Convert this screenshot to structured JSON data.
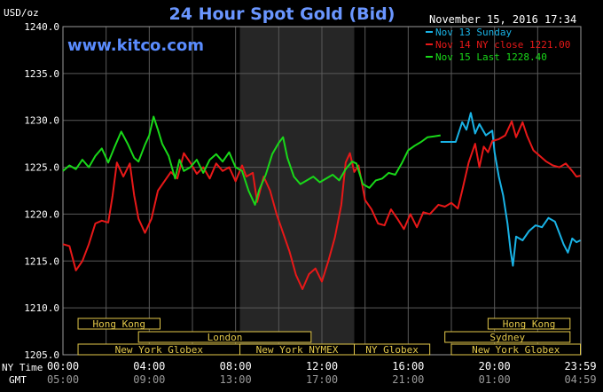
{
  "chart_data": {
    "type": "line",
    "title": "24 Hour Spot Gold (Bid)",
    "site": "www.kitco.com",
    "timestamp": "November 15, 2016 17:34",
    "y_unit_label": "USD/oz",
    "ylim": [
      1205,
      1240
    ],
    "y_ticks": [
      1205,
      1210,
      1215,
      1220,
      1225,
      1230,
      1235,
      1240
    ],
    "y_tick_labels": [
      "1205.0",
      "1210.0",
      "1215.0",
      "1220.0",
      "1225.0",
      "1230.0",
      "1235.0",
      "1240.0"
    ],
    "x_row_labels": {
      "ny": "NY Time",
      "gmt": "GMT"
    },
    "x_ticks_ny": [
      "00:00",
      "04:00",
      "08:00",
      "12:00",
      "16:00",
      "20:00",
      "23:59"
    ],
    "x_ticks_gmt": [
      "05:00",
      "09:00",
      "13:00",
      "17:00",
      "21:00",
      "01:00",
      "04:59"
    ],
    "x_tick_hours": [
      0,
      4,
      8,
      12,
      16,
      20,
      23.98
    ],
    "xlim": [
      0,
      24
    ],
    "shaded_hours": [
      8.2,
      13.5
    ],
    "grid": true,
    "legend": [
      {
        "label": "Nov 13 Sunday",
        "color": "#19b3e6"
      },
      {
        "label": "Nov 14 NY close 1221.00",
        "color": "#e81818"
      },
      {
        "label": "Nov 15 Last 1228.40",
        "color": "#19d819"
      }
    ],
    "sessions": [
      {
        "label": "Hong Kong",
        "start": 0.7,
        "end": 4.5,
        "row": 0
      },
      {
        "label": "London",
        "start": 3.5,
        "end": 11.5,
        "row": 1
      },
      {
        "label": "New York Globex",
        "start": 0.7,
        "end": 8.2,
        "row": 2
      },
      {
        "label": "New York NYMEX",
        "start": 8.2,
        "end": 13.5,
        "row": 2
      },
      {
        "label": "NY Globex",
        "start": 13.5,
        "end": 17.0,
        "row": 2
      },
      {
        "label": "Hong Kong",
        "start": 19.7,
        "end": 23.5,
        "row": 0
      },
      {
        "label": "Sydney",
        "start": 17.7,
        "end": 23.5,
        "row": 1
      },
      {
        "label": "New York Globex",
        "start": 18.0,
        "end": 23.98,
        "row": 2
      }
    ],
    "series": [
      {
        "name": "Nov 13 Sunday",
        "color": "#19b3e6",
        "points": [
          [
            17.5,
            1227.7
          ],
          [
            18.2,
            1227.7
          ],
          [
            18.5,
            1229.8
          ],
          [
            18.7,
            1229.0
          ],
          [
            18.9,
            1230.8
          ],
          [
            19.1,
            1228.6
          ],
          [
            19.3,
            1229.6
          ],
          [
            19.6,
            1228.4
          ],
          [
            19.9,
            1228.9
          ],
          [
            20.0,
            1226.6
          ],
          [
            20.2,
            1224.0
          ],
          [
            20.4,
            1222.0
          ],
          [
            20.6,
            1219.0
          ],
          [
            20.75,
            1216.0
          ],
          [
            20.85,
            1214.5
          ],
          [
            21.0,
            1217.6
          ],
          [
            21.3,
            1217.2
          ],
          [
            21.6,
            1218.2
          ],
          [
            21.9,
            1218.8
          ],
          [
            22.2,
            1218.6
          ],
          [
            22.5,
            1219.6
          ],
          [
            22.8,
            1219.2
          ],
          [
            23.0,
            1218.0
          ],
          [
            23.2,
            1216.8
          ],
          [
            23.4,
            1215.9
          ],
          [
            23.6,
            1217.4
          ],
          [
            23.8,
            1217.0
          ],
          [
            23.98,
            1217.2
          ]
        ]
      },
      {
        "name": "Nov 14 NY close 1221.00",
        "color": "#e81818",
        "points": [
          [
            0,
            1216.8
          ],
          [
            0.3,
            1216.6
          ],
          [
            0.6,
            1214.0
          ],
          [
            0.9,
            1215.0
          ],
          [
            1.2,
            1216.8
          ],
          [
            1.5,
            1219.0
          ],
          [
            1.8,
            1219.3
          ],
          [
            2.1,
            1219.1
          ],
          [
            2.3,
            1222.0
          ],
          [
            2.5,
            1225.5
          ],
          [
            2.8,
            1224.0
          ],
          [
            3.1,
            1225.4
          ],
          [
            3.3,
            1222.0
          ],
          [
            3.5,
            1219.5
          ],
          [
            3.8,
            1218.0
          ],
          [
            4.1,
            1219.5
          ],
          [
            4.4,
            1222.5
          ],
          [
            4.7,
            1223.5
          ],
          [
            5.0,
            1224.5
          ],
          [
            5.3,
            1223.8
          ],
          [
            5.6,
            1226.5
          ],
          [
            5.9,
            1225.5
          ],
          [
            6.2,
            1224.3
          ],
          [
            6.5,
            1225.0
          ],
          [
            6.8,
            1223.8
          ],
          [
            7.1,
            1225.4
          ],
          [
            7.4,
            1224.6
          ],
          [
            7.7,
            1225.0
          ],
          [
            8.0,
            1223.5
          ],
          [
            8.3,
            1225.2
          ],
          [
            8.5,
            1224.0
          ],
          [
            8.8,
            1224.4
          ],
          [
            9.0,
            1221.3
          ],
          [
            9.3,
            1224.0
          ],
          [
            9.6,
            1222.5
          ],
          [
            9.9,
            1220.0
          ],
          [
            10.2,
            1218.0
          ],
          [
            10.5,
            1216.0
          ],
          [
            10.8,
            1213.5
          ],
          [
            11.1,
            1212.0
          ],
          [
            11.4,
            1213.6
          ],
          [
            11.7,
            1214.2
          ],
          [
            12.0,
            1212.8
          ],
          [
            12.3,
            1215.0
          ],
          [
            12.6,
            1217.5
          ],
          [
            12.9,
            1221.0
          ],
          [
            13.1,
            1225.5
          ],
          [
            13.3,
            1226.5
          ],
          [
            13.5,
            1224.5
          ],
          [
            13.7,
            1225.2
          ],
          [
            14.0,
            1221.5
          ],
          [
            14.3,
            1220.5
          ],
          [
            14.6,
            1219.0
          ],
          [
            14.9,
            1218.8
          ],
          [
            15.2,
            1220.5
          ],
          [
            15.5,
            1219.5
          ],
          [
            15.8,
            1218.4
          ],
          [
            16.1,
            1220.0
          ],
          [
            16.4,
            1218.6
          ],
          [
            16.7,
            1220.2
          ],
          [
            17.0,
            1220.0
          ],
          [
            17.4,
            1221.0
          ],
          [
            17.7,
            1220.8
          ],
          [
            18.0,
            1221.2
          ],
          [
            18.3,
            1220.6
          ],
          [
            18.5,
            1222.5
          ],
          [
            18.8,
            1225.5
          ],
          [
            19.1,
            1227.5
          ],
          [
            19.3,
            1225.0
          ],
          [
            19.5,
            1227.2
          ],
          [
            19.7,
            1226.6
          ],
          [
            19.9,
            1227.8
          ],
          [
            20.2,
            1228.0
          ],
          [
            20.5,
            1228.4
          ],
          [
            20.8,
            1229.9
          ],
          [
            21.0,
            1228.2
          ],
          [
            21.3,
            1229.8
          ],
          [
            21.5,
            1228.4
          ],
          [
            21.8,
            1226.8
          ],
          [
            22.1,
            1226.2
          ],
          [
            22.4,
            1225.6
          ],
          [
            22.7,
            1225.2
          ],
          [
            23.0,
            1225.0
          ],
          [
            23.3,
            1225.4
          ],
          [
            23.6,
            1224.6
          ],
          [
            23.8,
            1224.0
          ],
          [
            23.98,
            1224.1
          ]
        ]
      },
      {
        "name": "Nov 15 Last 1228.40",
        "color": "#19d819",
        "points": [
          [
            0,
            1224.6
          ],
          [
            0.3,
            1225.2
          ],
          [
            0.6,
            1224.8
          ],
          [
            0.9,
            1225.8
          ],
          [
            1.2,
            1225.0
          ],
          [
            1.5,
            1226.2
          ],
          [
            1.8,
            1227.0
          ],
          [
            2.1,
            1225.5
          ],
          [
            2.4,
            1227.2
          ],
          [
            2.7,
            1228.8
          ],
          [
            3.0,
            1227.5
          ],
          [
            3.3,
            1226.0
          ],
          [
            3.5,
            1225.6
          ],
          [
            3.8,
            1227.4
          ],
          [
            4.0,
            1228.4
          ],
          [
            4.2,
            1230.4
          ],
          [
            4.4,
            1229.0
          ],
          [
            4.6,
            1227.5
          ],
          [
            4.9,
            1226.2
          ],
          [
            5.2,
            1223.8
          ],
          [
            5.4,
            1225.8
          ],
          [
            5.6,
            1224.6
          ],
          [
            5.9,
            1225.0
          ],
          [
            6.2,
            1225.8
          ],
          [
            6.5,
            1224.4
          ],
          [
            6.8,
            1225.8
          ],
          [
            7.1,
            1226.4
          ],
          [
            7.4,
            1225.6
          ],
          [
            7.7,
            1226.6
          ],
          [
            8.0,
            1225.0
          ],
          [
            8.3,
            1224.6
          ],
          [
            8.6,
            1222.5
          ],
          [
            8.9,
            1221.0
          ],
          [
            9.1,
            1222.6
          ],
          [
            9.4,
            1224.2
          ],
          [
            9.7,
            1226.4
          ],
          [
            10.0,
            1227.6
          ],
          [
            10.2,
            1228.2
          ],
          [
            10.4,
            1226.0
          ],
          [
            10.7,
            1224.0
          ],
          [
            11.0,
            1223.2
          ],
          [
            11.3,
            1223.6
          ],
          [
            11.6,
            1224.0
          ],
          [
            11.9,
            1223.4
          ],
          [
            12.2,
            1223.8
          ],
          [
            12.5,
            1224.2
          ],
          [
            12.8,
            1223.6
          ],
          [
            13.1,
            1224.8
          ],
          [
            13.4,
            1225.6
          ],
          [
            13.6,
            1225.4
          ],
          [
            13.9,
            1223.2
          ],
          [
            14.2,
            1222.8
          ],
          [
            14.5,
            1223.6
          ],
          [
            14.8,
            1223.8
          ],
          [
            15.1,
            1224.4
          ],
          [
            15.4,
            1224.2
          ],
          [
            15.7,
            1225.4
          ],
          [
            16.0,
            1226.8
          ],
          [
            16.3,
            1227.3
          ],
          [
            16.6,
            1227.7
          ],
          [
            16.9,
            1228.2
          ],
          [
            17.2,
            1228.3
          ],
          [
            17.5,
            1228.4
          ]
        ]
      }
    ]
  }
}
